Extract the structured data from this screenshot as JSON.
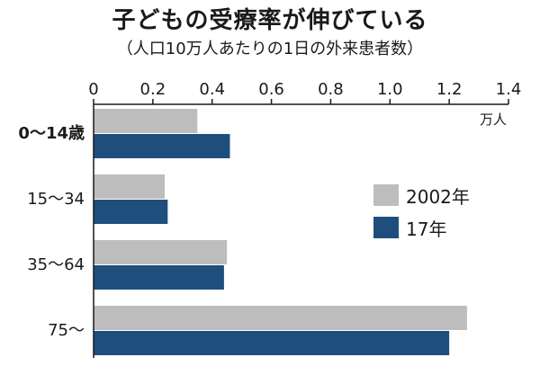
{
  "title": "子どもの受療率が伸びている",
  "subtitle": "（人口10万人あたりの1日の外来患者数）",
  "chart_data": {
    "type": "bar",
    "orientation": "horizontal",
    "unit": "万人",
    "xlim": [
      0,
      1.4
    ],
    "xticks": [
      "0",
      "0.2",
      "0.4",
      "0.6",
      "0.8",
      "1.0",
      "1.2",
      "1.4"
    ],
    "categories": [
      "0〜14歳",
      "15〜34",
      "35〜64",
      "75〜"
    ],
    "series": [
      {
        "name": "2002年",
        "color": "#bdbdbd",
        "values": [
          0.35,
          0.24,
          0.45,
          1.26
        ]
      },
      {
        "name": "17年",
        "color": "#1e4f7c",
        "values": [
          0.46,
          0.25,
          0.44,
          1.2
        ]
      }
    ],
    "legend_position": "right"
  }
}
